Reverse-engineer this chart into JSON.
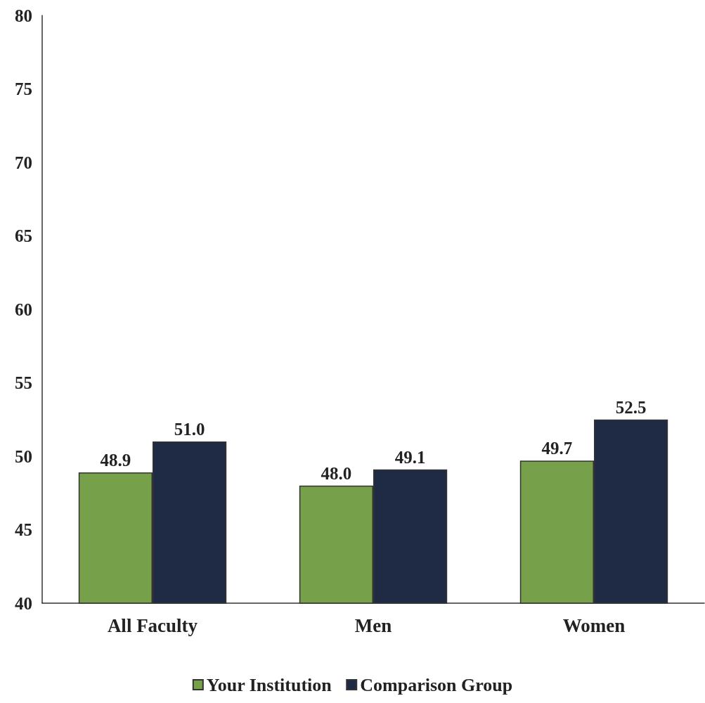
{
  "chart_data": {
    "type": "bar",
    "categories": [
      "All Faculty",
      "Men",
      "Women"
    ],
    "series": [
      {
        "name": "Your Institution",
        "color": "#77a04a",
        "values": [
          48.9,
          48.0,
          49.7
        ],
        "value_labels": [
          "48.9",
          "48.0",
          "49.7"
        ]
      },
      {
        "name": "Comparison Group",
        "color": "#1f2a44",
        "values": [
          51.0,
          49.1,
          52.5
        ],
        "value_labels": [
          "51.0",
          "49.1",
          "52.5"
        ]
      }
    ],
    "ylim": [
      40,
      80
    ],
    "yticks": [
      40,
      45,
      50,
      55,
      60,
      65,
      70,
      75,
      80
    ],
    "grid": false,
    "legend": "bottom"
  }
}
